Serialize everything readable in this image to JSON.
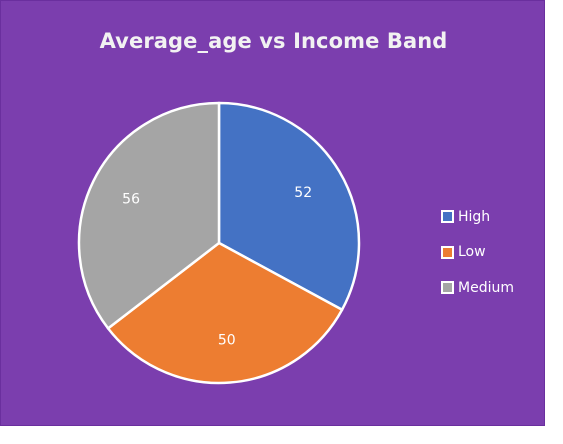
{
  "chart_data": {
    "type": "pie",
    "title": "Average_age vs Income Band",
    "categories": [
      "High",
      "Low",
      "Medium"
    ],
    "values": [
      52,
      50,
      56
    ],
    "colors": [
      "#4472C4",
      "#ED7D31",
      "#A5A5A5"
    ],
    "legend_position": "right",
    "background": "#7B3EAE",
    "data_labels": [
      "52",
      "50",
      "56"
    ]
  }
}
